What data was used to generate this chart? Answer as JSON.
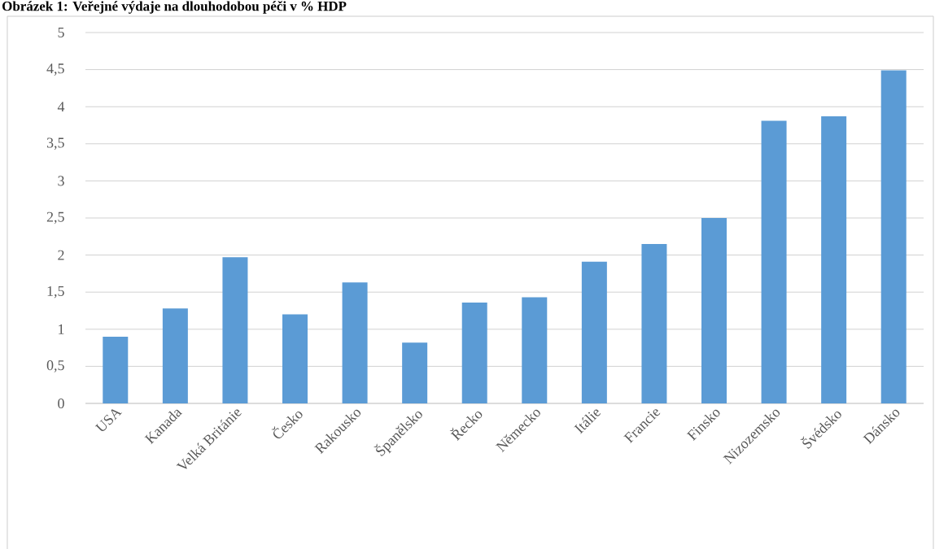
{
  "chart_data": {
    "type": "bar",
    "title": "Obrázek 1: Veřejné výdaje na dlouhodobou péči v % HDP",
    "categories": [
      "USA",
      "Kanada",
      "Velká Británie",
      "Česko",
      "Rakousko",
      "Španělsko",
      "Řecko",
      "Německo",
      "Itálie",
      "Francie",
      "Finsko",
      "Nizozemsko",
      "Švédsko",
      "Dánsko"
    ],
    "values": [
      0.9,
      1.28,
      1.97,
      1.2,
      1.63,
      0.82,
      1.36,
      1.43,
      1.91,
      2.15,
      2.5,
      3.81,
      3.87,
      4.49
    ],
    "color": "#5b9bd5",
    "ylim": [
      0,
      5
    ],
    "yticks": [
      0,
      {
        "value": 0.5,
        "label": "0,5"
      },
      1,
      {
        "value": 1.5,
        "label": "1,5"
      },
      2,
      {
        "value": 2.5,
        "label": "2,5"
      },
      3,
      {
        "value": 3.5,
        "label": "3,5"
      },
      4,
      {
        "value": 4.5,
        "label": "4,5"
      },
      5
    ],
    "grid": "y"
  }
}
